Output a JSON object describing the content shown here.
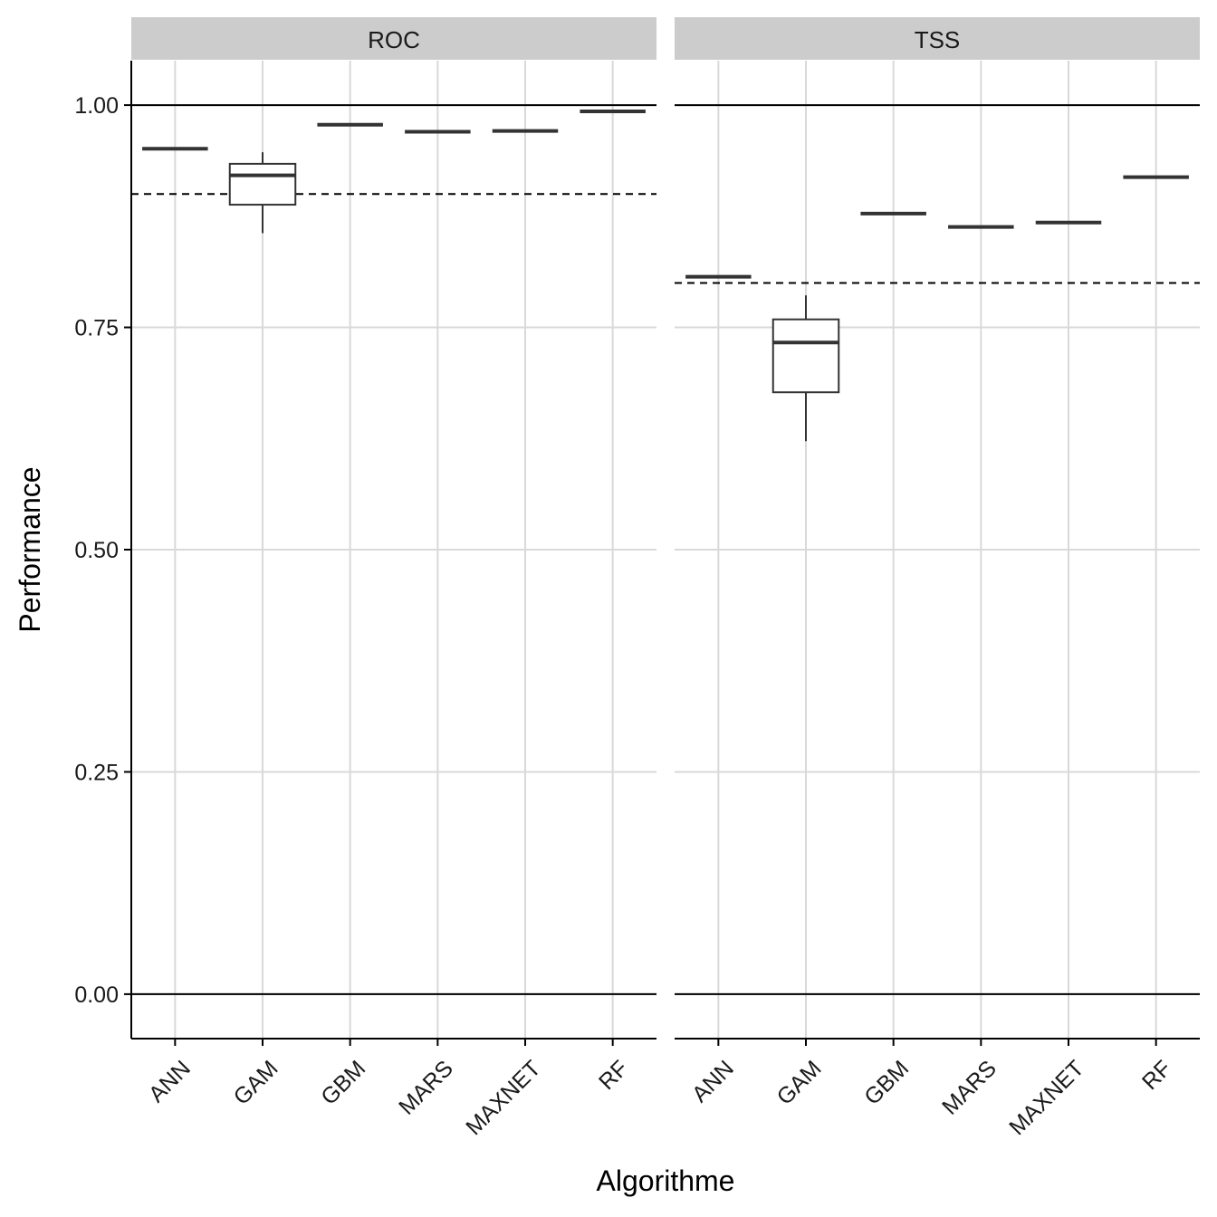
{
  "chart_data": {
    "type": "boxplot",
    "xlabel": "Algorithme",
    "ylabel": "Performance",
    "ylim": [
      -0.05,
      1.05
    ],
    "yticks": [
      0.0,
      0.25,
      0.5,
      0.75,
      1.0
    ],
    "ytick_labels": [
      "0.00",
      "0.25",
      "0.50",
      "0.75",
      "1.00"
    ],
    "categories": [
      "ANN",
      "GAM",
      "GBM",
      "MARS",
      "MAXNET",
      "RF"
    ],
    "reference_lines": [
      0,
      1
    ],
    "grid": true,
    "colors": {
      "box": "#333333",
      "grid": "#d9d9d9",
      "strip": "#cccccc",
      "axis": "#000000"
    },
    "panels": [
      {
        "name": "ROC",
        "threshold": 0.9,
        "boxes": [
          {
            "category": "ANN",
            "min": 0.951,
            "q1": 0.951,
            "median": 0.951,
            "q3": 0.951,
            "max": 0.951
          },
          {
            "category": "GAM",
            "min": 0.856,
            "q1": 0.888,
            "median": 0.921,
            "q3": 0.934,
            "max": 0.947
          },
          {
            "category": "GBM",
            "min": 0.978,
            "q1": 0.978,
            "median": 0.978,
            "q3": 0.978,
            "max": 0.978
          },
          {
            "category": "MARS",
            "min": 0.97,
            "q1": 0.97,
            "median": 0.97,
            "q3": 0.97,
            "max": 0.97
          },
          {
            "category": "MAXNET",
            "min": 0.971,
            "q1": 0.971,
            "median": 0.971,
            "q3": 0.971,
            "max": 0.971
          },
          {
            "category": "RF",
            "min": 0.993,
            "q1": 0.993,
            "median": 0.993,
            "q3": 0.993,
            "max": 0.993
          }
        ]
      },
      {
        "name": "TSS",
        "threshold": 0.8,
        "boxes": [
          {
            "category": "ANN",
            "min": 0.807,
            "q1": 0.807,
            "median": 0.807,
            "q3": 0.807,
            "max": 0.807
          },
          {
            "category": "GAM",
            "min": 0.622,
            "q1": 0.677,
            "median": 0.733,
            "q3": 0.759,
            "max": 0.786
          },
          {
            "category": "GBM",
            "min": 0.878,
            "q1": 0.878,
            "median": 0.878,
            "q3": 0.878,
            "max": 0.878
          },
          {
            "category": "MARS",
            "min": 0.863,
            "q1": 0.863,
            "median": 0.863,
            "q3": 0.863,
            "max": 0.863
          },
          {
            "category": "MAXNET",
            "min": 0.868,
            "q1": 0.868,
            "median": 0.868,
            "q3": 0.868,
            "max": 0.868
          },
          {
            "category": "RF",
            "min": 0.919,
            "q1": 0.919,
            "median": 0.919,
            "q3": 0.919,
            "max": 0.919
          }
        ]
      }
    ]
  }
}
